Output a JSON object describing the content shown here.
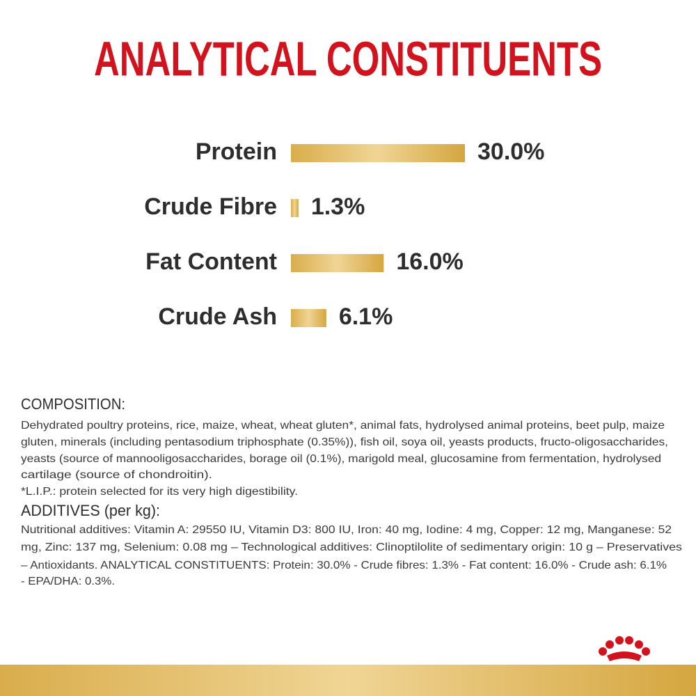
{
  "chart_data": {
    "type": "bar",
    "orientation": "horizontal",
    "title": "ANALYTICAL CONSTITUENTS",
    "categories": [
      "Protein",
      "Crude Fibre",
      "Fat Content",
      "Crude Ash"
    ],
    "values": [
      30.0,
      1.3,
      16.0,
      6.1
    ],
    "value_labels": [
      "30.0%",
      "1.3%",
      "16.0%",
      "6.1%"
    ],
    "color": "#e2bc62"
  },
  "composition": {
    "heading": "COMPOSITION:",
    "lines": [
      "Dehydrated poultry proteins, rice, maize, wheat, wheat gluten*, animal fats, hydrolysed animal proteins, beet pulp, maize",
      "gluten, minerals (including pentasodium triphosphate (0.35%)), fish oil, soya oil, yeasts products, fructo-oligosaccharides,",
      "yeasts (source of mannooligosaccharides, borage oil (0.1%), marigold meal, glucosamine from fermentation, hydrolysed",
      "cartilage (source of chondroitin).",
      "*L.I.P.: protein selected for its very high digestibility."
    ]
  },
  "additives": {
    "heading": "ADDITIVES (per kg):",
    "lines": [
      "Nutritional additives: Vitamin A: 29550 IU, Vitamin D3: 800 IU, Iron: 40 mg, Iodine: 4 mg, Copper: 12 mg, Manganese: 52",
      "mg, Zinc: 137 mg, Selenium: 0.08 mg – Technological additives: Clinoptilolite of sedimentary origin: 10 g – Preservatives",
      "– Antioxidants. ANALYTICAL CONSTITUENTS: Protein: 30.0% - Crude fibres: 1.3% - Fat content: 16.0% - Crude ash: 6.1%",
      "- EPA/DHA: 0.3%."
    ]
  }
}
